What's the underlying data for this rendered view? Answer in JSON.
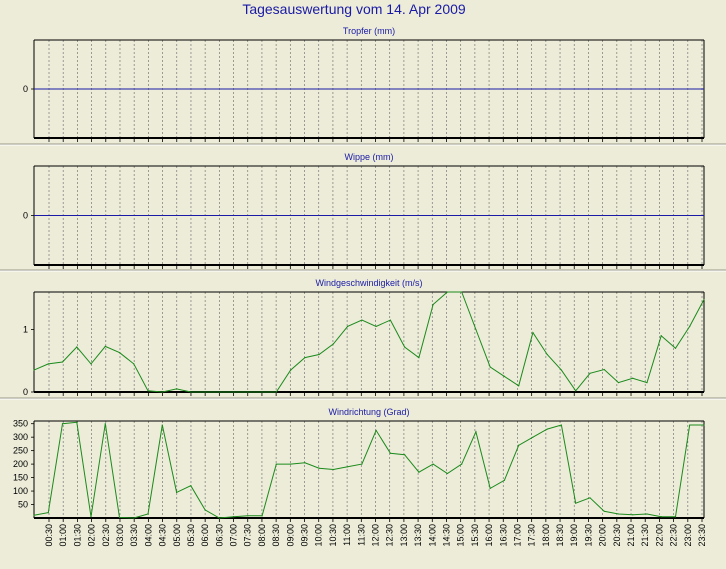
{
  "title": "Tagesauswertung vom 14. Apr 2009",
  "colors": {
    "background": "#ECECD9",
    "title": "#1A1AA6",
    "frame": "#000000",
    "zero_line": "#1A1AA6",
    "series_line": "#1B8A1B",
    "grid": "#777777"
  },
  "x_ticks": [
    "00:30",
    "01:00",
    "01:30",
    "02:00",
    "02:30",
    "03:00",
    "03:30",
    "04:00",
    "04:30",
    "05:00",
    "05:30",
    "06:00",
    "06:30",
    "07:00",
    "07:30",
    "08:00",
    "08:30",
    "09:00",
    "09:30",
    "10:00",
    "10:30",
    "11:00",
    "11:30",
    "12:00",
    "12:30",
    "13:00",
    "13:30",
    "14:00",
    "14:30",
    "15:00",
    "15:30",
    "16:00",
    "16:30",
    "17:00",
    "17:30",
    "18:00",
    "18:30",
    "19:00",
    "19:30",
    "20:00",
    "20:30",
    "21:00",
    "21:30",
    "22:00",
    "22:30",
    "23:00",
    "23:30"
  ],
  "chart_data": [
    {
      "type": "line",
      "title": "Tropfer (mm)",
      "yticks": [
        0
      ],
      "ylim": [
        -1,
        1
      ],
      "grid": true,
      "series": [
        {
          "values": [
            0,
            0,
            0,
            0,
            0,
            0,
            0,
            0,
            0,
            0,
            0,
            0,
            0,
            0,
            0,
            0,
            0,
            0,
            0,
            0,
            0,
            0,
            0,
            0,
            0,
            0,
            0,
            0,
            0,
            0,
            0,
            0,
            0,
            0,
            0,
            0,
            0,
            0,
            0,
            0,
            0,
            0,
            0,
            0,
            0,
            0,
            0,
            0,
            0
          ]
        }
      ]
    },
    {
      "type": "line",
      "title": "Wippe (mm)",
      "yticks": [
        0
      ],
      "ylim": [
        -1,
        1
      ],
      "grid": true,
      "series": [
        {
          "values": [
            0,
            0,
            0,
            0,
            0,
            0,
            0,
            0,
            0,
            0,
            0,
            0,
            0,
            0,
            0,
            0,
            0,
            0,
            0,
            0,
            0,
            0,
            0,
            0,
            0,
            0,
            0,
            0,
            0,
            0,
            0,
            0,
            0,
            0,
            0,
            0,
            0,
            0,
            0,
            0,
            0,
            0,
            0,
            0,
            0,
            0,
            0,
            0,
            0
          ]
        }
      ]
    },
    {
      "type": "line",
      "title": "Windgeschwindigkeit (m/s)",
      "yticks": [
        0,
        1
      ],
      "ylim": [
        0,
        1.6
      ],
      "grid": true,
      "series": [
        {
          "values": [
            0.35,
            0.45,
            0.48,
            0.72,
            0.45,
            0.73,
            0.63,
            0.45,
            0.02,
            0,
            0.05,
            0,
            0,
            0,
            0,
            0,
            0,
            0,
            0.35,
            0.55,
            0.6,
            0.77,
            1.05,
            1.15,
            1.05,
            1.15,
            0.72,
            0.55,
            1.4,
            1.6,
            1.6,
            1.0,
            0.4,
            0.25,
            0.1,
            0.95,
            0.6,
            0.35,
            0.02,
            0.3,
            0.36,
            0.15,
            0.22,
            0.15,
            0.9,
            0.7,
            1.05,
            1.48
          ]
        }
      ]
    },
    {
      "type": "line",
      "title": "Windrichtung (Grad)",
      "yticks": [
        50,
        100,
        150,
        200,
        250,
        300,
        350
      ],
      "ylim": [
        0,
        360
      ],
      "grid": true,
      "series": [
        {
          "values": [
            10,
            20,
            350,
            355,
            5,
            350,
            2,
            0,
            15,
            345,
            95,
            120,
            30,
            0,
            5,
            8,
            8,
            200,
            200,
            205,
            185,
            180,
            190,
            200,
            325,
            240,
            235,
            170,
            200,
            165,
            200,
            320,
            110,
            140,
            270,
            300,
            330,
            345,
            55,
            75,
            25,
            15,
            12,
            15,
            5,
            5,
            345,
            345
          ]
        }
      ]
    }
  ]
}
